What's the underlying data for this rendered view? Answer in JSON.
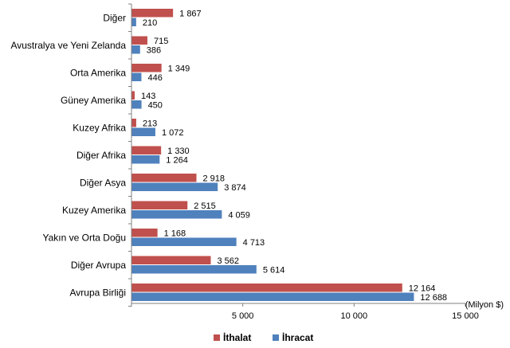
{
  "chart_data": {
    "type": "bar",
    "orientation": "horizontal",
    "categories": [
      "Diğer",
      "Avustralya ve Yeni Zelanda",
      "Orta Amerika",
      "Güney Amerika",
      "Kuzey Afrika",
      "Diğer Afrika",
      "Diğer Asya",
      "Kuzey Amerika",
      "Yakın ve Orta Doğu",
      "Diğer Avrupa",
      "Avrupa Birliği"
    ],
    "series": [
      {
        "name": "İthalat",
        "color": "#C0504D",
        "values": [
          1867,
          715,
          1349,
          143,
          213,
          1330,
          2918,
          2515,
          1168,
          3562,
          12164
        ],
        "labels": [
          "1 867",
          "715",
          "1 349",
          "143",
          "213",
          "1 330",
          "2 918",
          "2 515",
          "1 168",
          "3 562",
          "12 164"
        ]
      },
      {
        "name": "İhracat",
        "color": "#4F81BD",
        "values": [
          210,
          386,
          446,
          450,
          1072,
          1264,
          3874,
          4059,
          4713,
          5614,
          12688
        ],
        "labels": [
          "210",
          "386",
          "446",
          "450",
          "1 072",
          "1 264",
          "3 874",
          "4 059",
          "4 713",
          "5 614",
          "12 688"
        ]
      }
    ],
    "xlim": [
      0,
      15000
    ],
    "xticks": [
      0,
      5000,
      10000,
      15000
    ],
    "xtick_labels": [
      "",
      "5 000",
      "10 000",
      "15 000"
    ],
    "unit_label": "(Milyon $)",
    "legend_position": "bottom",
    "grid": false
  }
}
